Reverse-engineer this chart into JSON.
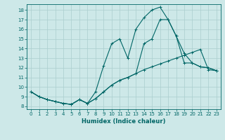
{
  "title": "",
  "xlabel": "Humidex (Indice chaleur)",
  "background_color": "#cde8e8",
  "grid_color": "#aacece",
  "line_color": "#006666",
  "xlim": [
    -0.5,
    23.5
  ],
  "ylim": [
    7.7,
    18.6
  ],
  "xticks": [
    0,
    1,
    2,
    3,
    4,
    5,
    6,
    7,
    8,
    9,
    10,
    11,
    12,
    13,
    14,
    15,
    16,
    17,
    18,
    19,
    20,
    21,
    22,
    23
  ],
  "yticks": [
    8,
    9,
    10,
    11,
    12,
    13,
    14,
    15,
    16,
    17,
    18
  ],
  "line1_x": [
    0,
    1,
    2,
    3,
    4,
    5,
    6,
    7,
    8,
    9,
    10,
    11,
    12,
    13,
    14,
    15,
    16,
    17,
    18,
    19,
    20,
    21,
    22,
    23
  ],
  "line1_y": [
    9.5,
    9.0,
    8.7,
    8.5,
    8.3,
    8.2,
    8.7,
    8.3,
    8.8,
    9.5,
    10.2,
    10.7,
    11.0,
    11.4,
    11.8,
    12.1,
    12.4,
    12.7,
    13.0,
    13.3,
    13.6,
    13.9,
    11.8,
    11.7
  ],
  "line2_x": [
    0,
    1,
    2,
    3,
    4,
    5,
    6,
    7,
    8,
    9,
    10,
    11,
    12,
    13,
    14,
    15,
    16,
    17,
    18,
    19,
    20,
    21,
    22,
    23
  ],
  "line2_y": [
    9.5,
    9.0,
    8.7,
    8.5,
    8.3,
    8.2,
    8.7,
    8.3,
    9.5,
    12.2,
    14.5,
    15.0,
    13.0,
    16.0,
    17.2,
    18.0,
    18.3,
    17.0,
    15.3,
    12.5,
    12.5,
    12.1,
    12.0,
    11.7
  ],
  "line3_x": [
    0,
    1,
    2,
    3,
    4,
    5,
    6,
    7,
    8,
    9,
    10,
    11,
    12,
    13,
    14,
    15,
    16,
    17,
    18,
    19,
    20,
    21,
    22,
    23
  ],
  "line3_y": [
    9.5,
    9.0,
    8.7,
    8.5,
    8.3,
    8.2,
    8.7,
    8.3,
    8.8,
    9.5,
    10.2,
    10.7,
    11.0,
    11.4,
    14.5,
    15.0,
    17.0,
    17.0,
    15.3,
    13.5,
    12.5,
    12.1,
    12.0,
    11.7
  ]
}
